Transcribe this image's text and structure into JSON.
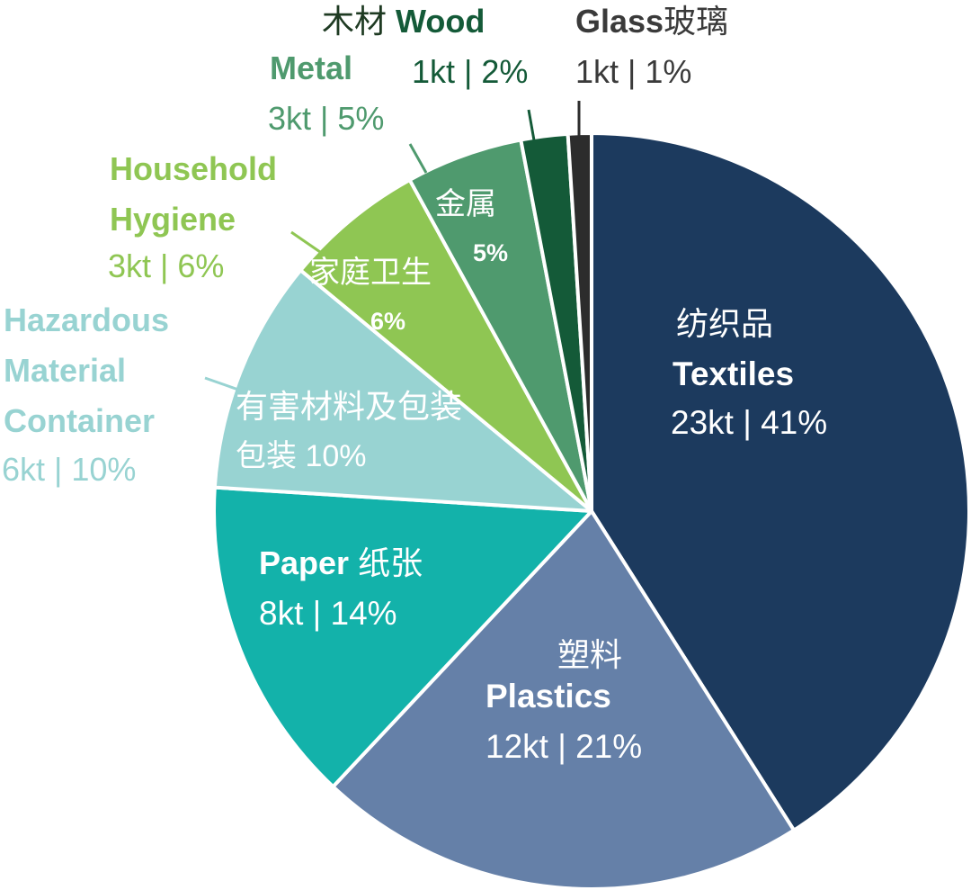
{
  "chart_data": {
    "type": "pie",
    "title": "",
    "unit": "kt",
    "slices": [
      {
        "label_zh": "纺织品",
        "label_en": "Textiles",
        "value": 23,
        "percent": 41,
        "value_text": "23kt | 41%",
        "color": "#1c3a5e"
      },
      {
        "label_zh": "塑料",
        "label_en": "Plastics",
        "value": 12,
        "percent": 21,
        "value_text": "12kt | 21%",
        "color": "#6580a8"
      },
      {
        "label_zh": "纸张",
        "label_en": "Paper",
        "value": 8,
        "percent": 14,
        "value_text": "8kt | 14%",
        "color": "#13b2aa"
      },
      {
        "label_zh": "有害材料及包装",
        "label_en": "Hazardous Material Container",
        "value": 6,
        "percent": 10,
        "value_text": "6kt | 10%",
        "inner_text": "包装 10%",
        "color": "#98d3d2"
      },
      {
        "label_zh": "家庭卫生",
        "label_en": "Household Hygiene",
        "value": 3,
        "percent": 6,
        "value_text": "3kt | 6%",
        "inner_pct": "6%",
        "color": "#8fc653"
      },
      {
        "label_zh": "金属",
        "label_en": "Metal",
        "value": 3,
        "percent": 5,
        "value_text": "3kt | 5%",
        "inner_pct": "5%",
        "color": "#4f9a6e"
      },
      {
        "label_zh": "木材",
        "label_en": "Wood",
        "value": 1,
        "percent": 2,
        "value_text": "1kt | 2%",
        "color": "#145a38"
      },
      {
        "label_zh": "玻璃",
        "label_en": "Glass",
        "value": 1,
        "percent": 1,
        "value_text": "1kt | 1%",
        "color": "#2c2c2c"
      }
    ],
    "legend": "none"
  }
}
